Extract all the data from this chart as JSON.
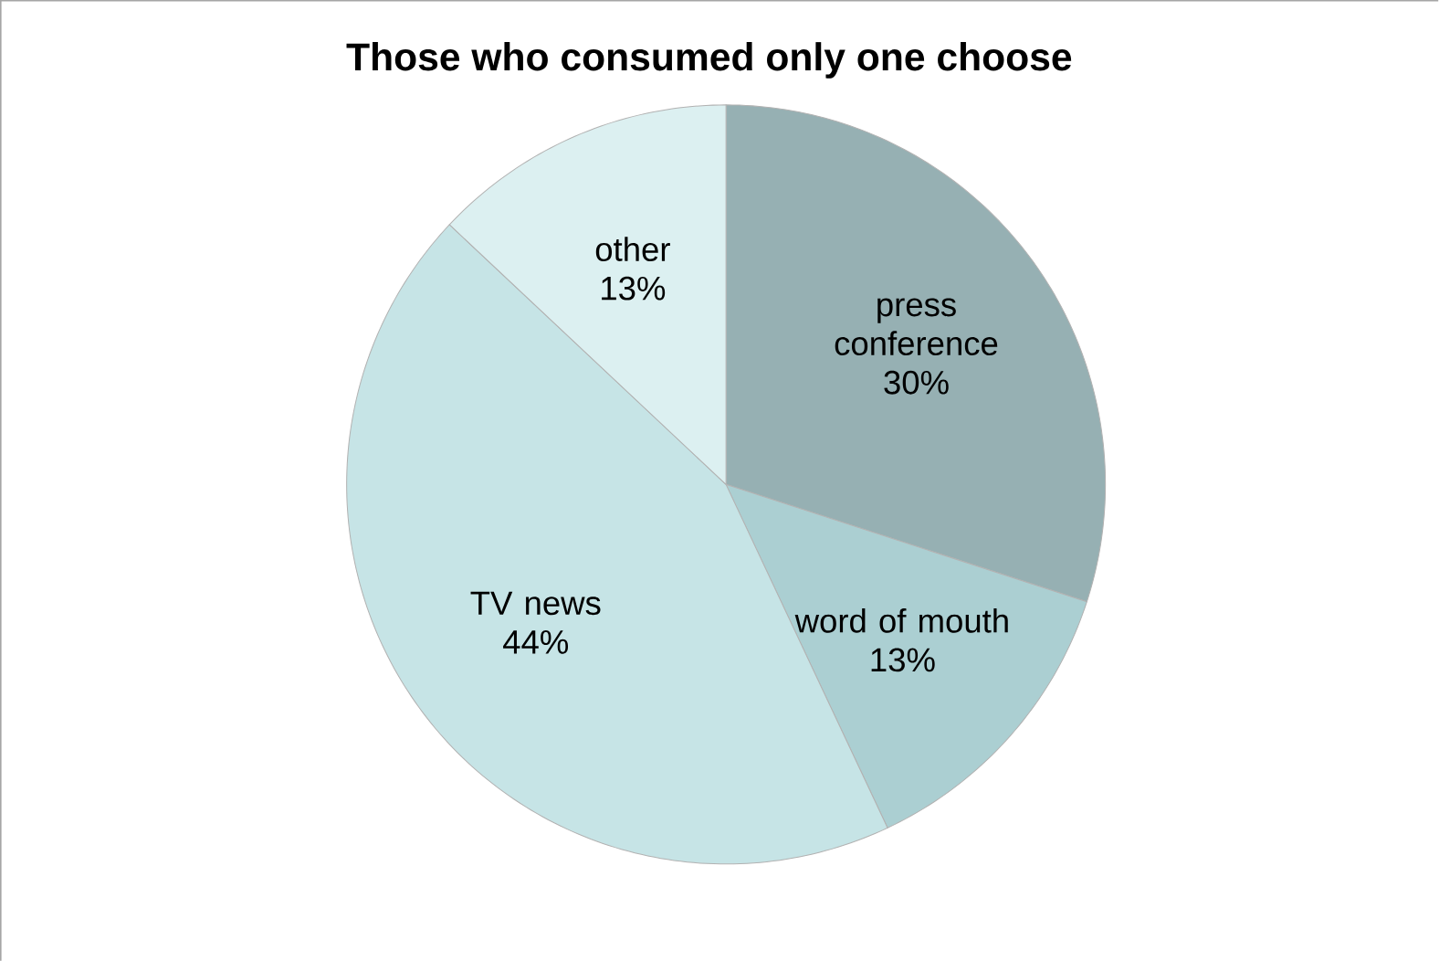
{
  "chart_data": {
    "type": "pie",
    "title": "Those who consumed only one choose",
    "categories": [
      "press conference",
      "word of mouth",
      "TV news",
      "other"
    ],
    "values": [
      30,
      13,
      44,
      13
    ],
    "value_labels": [
      "30%",
      "13%",
      "44%",
      "13%"
    ],
    "colors": [
      "#96b0b3",
      "#abcfd2",
      "#c6e4e6",
      "#dcf0f1"
    ]
  }
}
